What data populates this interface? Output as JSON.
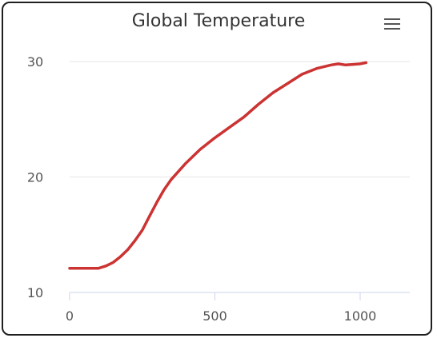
{
  "title": "Global Temperature",
  "menu_icon": "hamburger-menu-icon",
  "colors": {
    "line": "#cc3333",
    "grid": "#e6e6e6",
    "axis": "#ccd6eb"
  },
  "chart_data": {
    "type": "line",
    "title": "Global Temperature",
    "xlabel": "",
    "ylabel": "",
    "xlim": [
      0,
      1170
    ],
    "ylim": [
      10,
      30.5
    ],
    "x_ticks": [
      0,
      500,
      1000
    ],
    "y_ticks": [
      10,
      20,
      30
    ],
    "grid": "horizontal",
    "legend": "none",
    "series": [
      {
        "x": [
          0,
          50,
          100,
          125,
          150,
          175,
          200,
          225,
          250,
          275,
          300,
          325,
          350,
          400,
          450,
          500,
          550,
          600,
          650,
          700,
          750,
          800,
          850,
          900,
          925,
          950,
          975,
          1000,
          1020
        ],
        "y": [
          12.1,
          12.1,
          12.1,
          12.3,
          12.6,
          13.1,
          13.7,
          14.5,
          15.4,
          16.6,
          17.8,
          18.9,
          19.8,
          21.2,
          22.4,
          23.4,
          24.3,
          25.2,
          26.3,
          27.3,
          28.1,
          28.9,
          29.4,
          29.7,
          29.8,
          29.7,
          29.75,
          29.8,
          29.9
        ]
      }
    ]
  }
}
